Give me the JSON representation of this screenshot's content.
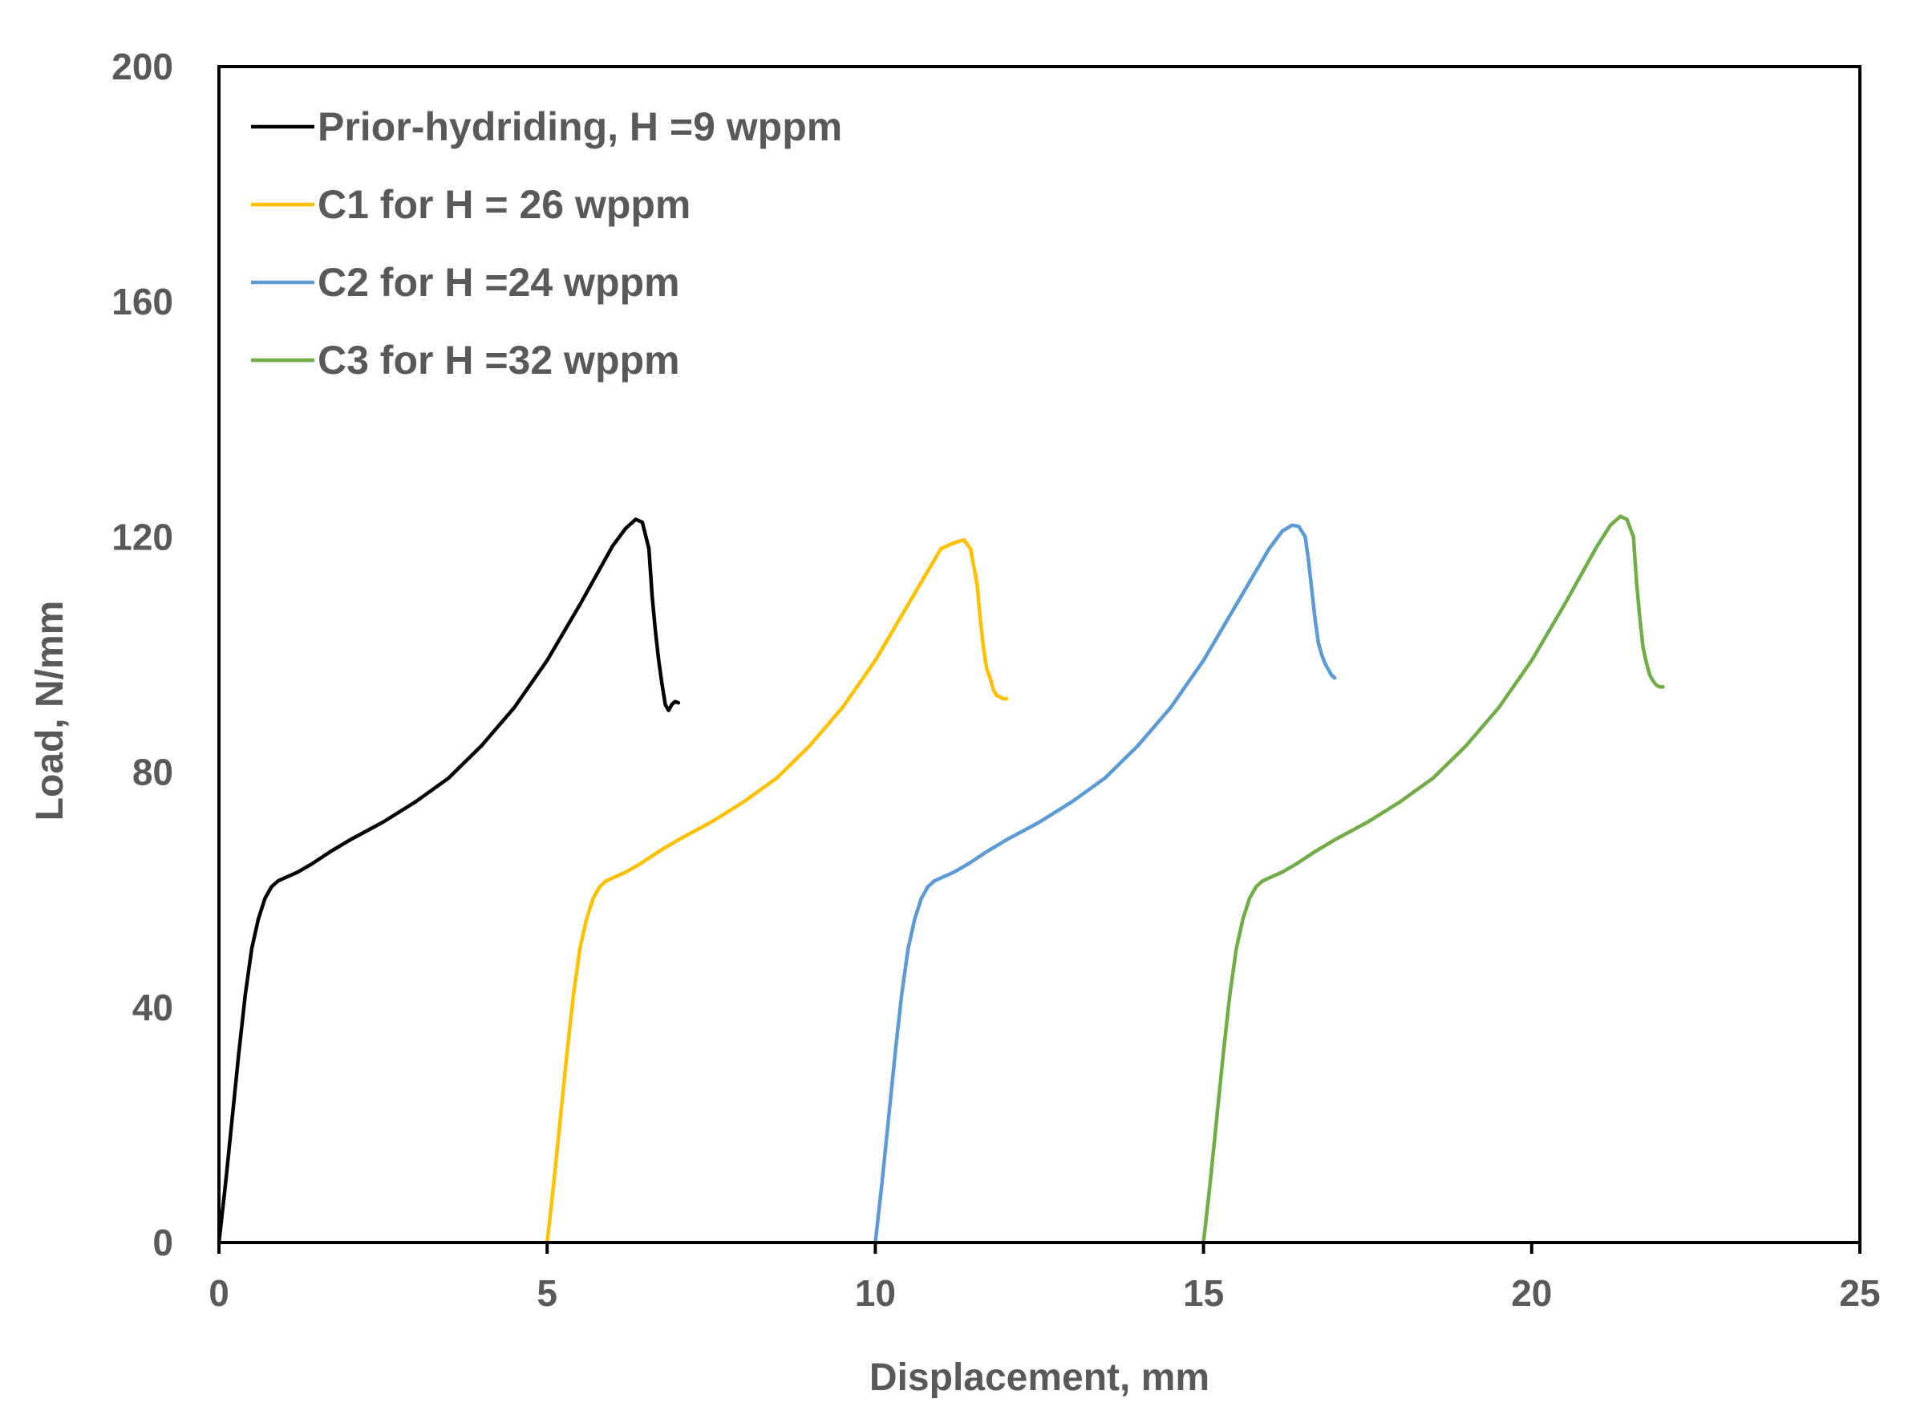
{
  "chart_data": {
    "type": "line",
    "title": "",
    "xlabel": "Displacement, mm",
    "ylabel": "Load, N/mm",
    "xlim": [
      0,
      25
    ],
    "ylim": [
      0,
      200
    ],
    "xticks": [
      0,
      5,
      10,
      15,
      20,
      25
    ],
    "yticks": [
      0,
      40,
      80,
      120,
      160,
      200
    ],
    "grid": false,
    "legend_position": "top-left",
    "series": [
      {
        "name": "Prior-hydriding, H =9 wppm",
        "color": "#000000",
        "x": [
          0,
          0.1,
          0.2,
          0.3,
          0.4,
          0.5,
          0.6,
          0.7,
          0.8,
          0.9,
          1.0,
          1.2,
          1.4,
          1.7,
          2.0,
          2.5,
          3.0,
          3.5,
          4.0,
          4.5,
          5.0,
          5.5,
          6.0,
          6.2,
          6.35,
          6.45,
          6.55,
          6.6,
          6.65,
          6.7,
          6.75,
          6.8,
          6.85,
          6.9,
          6.95,
          7.0
        ],
        "y": [
          0,
          10,
          21,
          32,
          42,
          50,
          55,
          58.5,
          60.5,
          61.5,
          62,
          63,
          64.3,
          66.5,
          68.5,
          71.5,
          75,
          79,
          84.5,
          91,
          99,
          108.5,
          118.5,
          121.5,
          123,
          122.5,
          118,
          110,
          104,
          99,
          95,
          91.5,
          90.5,
          91.5,
          92,
          91.8
        ]
      },
      {
        "name": "C1 for H = 26 wppm",
        "color": "#FFC000",
        "x": [
          5.0,
          5.1,
          5.2,
          5.3,
          5.4,
          5.5,
          5.6,
          5.7,
          5.8,
          5.9,
          6.0,
          6.2,
          6.4,
          6.7,
          7.0,
          7.5,
          8.0,
          8.5,
          9.0,
          9.5,
          10.0,
          10.5,
          11.0,
          11.2,
          11.35,
          11.45,
          11.55,
          11.6,
          11.65,
          11.7,
          11.75,
          11.8,
          11.85,
          11.9,
          11.95,
          12.0
        ],
        "y": [
          0,
          10,
          21,
          32,
          42,
          50,
          55,
          58.5,
          60.5,
          61.5,
          62,
          63,
          64.3,
          66.5,
          68.5,
          71.5,
          75,
          79,
          84.5,
          91,
          99,
          108.5,
          118,
          119,
          119.5,
          118,
          112,
          106,
          101,
          97.5,
          96,
          94,
          93,
          92.8,
          92.5,
          92.5
        ]
      },
      {
        "name": "C2 for H =24 wppm",
        "color": "#5B9BD5",
        "x": [
          10.0,
          10.1,
          10.2,
          10.3,
          10.4,
          10.5,
          10.6,
          10.7,
          10.8,
          10.9,
          11.0,
          11.2,
          11.4,
          11.7,
          12.0,
          12.5,
          13.0,
          13.5,
          14.0,
          14.5,
          15.0,
          15.5,
          16.0,
          16.2,
          16.35,
          16.45,
          16.55,
          16.6,
          16.65,
          16.7,
          16.75,
          16.8,
          16.85,
          16.9,
          16.95,
          17.0
        ],
        "y": [
          0,
          10,
          21,
          32,
          42,
          50,
          55,
          58.5,
          60.5,
          61.5,
          62,
          63,
          64.3,
          66.5,
          68.5,
          71.5,
          75,
          79,
          84.5,
          91,
          99,
          108.5,
          118,
          121,
          122,
          121.8,
          120,
          116,
          111,
          106,
          102,
          100,
          98.5,
          97.5,
          96.5,
          96
        ]
      },
      {
        "name": "C3 for H =32 wppm",
        "color": "#70AD47",
        "x": [
          15.0,
          15.1,
          15.2,
          15.3,
          15.4,
          15.5,
          15.6,
          15.7,
          15.8,
          15.9,
          16.0,
          16.2,
          16.4,
          16.7,
          17.0,
          17.5,
          18.0,
          18.5,
          19.0,
          19.5,
          20.0,
          20.5,
          21.0,
          21.2,
          21.35,
          21.45,
          21.55,
          21.6,
          21.65,
          21.7,
          21.75,
          21.8,
          21.85,
          21.9,
          21.95,
          22.0
        ],
        "y": [
          0,
          10,
          21,
          32,
          42,
          50,
          55,
          58.5,
          60.5,
          61.5,
          62,
          63,
          64.3,
          66.5,
          68.5,
          71.5,
          75,
          79,
          84.5,
          91,
          99,
          108.5,
          118.5,
          122,
          123.5,
          123,
          120,
          112,
          106,
          101,
          98.5,
          96.5,
          95.5,
          94.8,
          94.5,
          94.5
        ]
      }
    ]
  }
}
